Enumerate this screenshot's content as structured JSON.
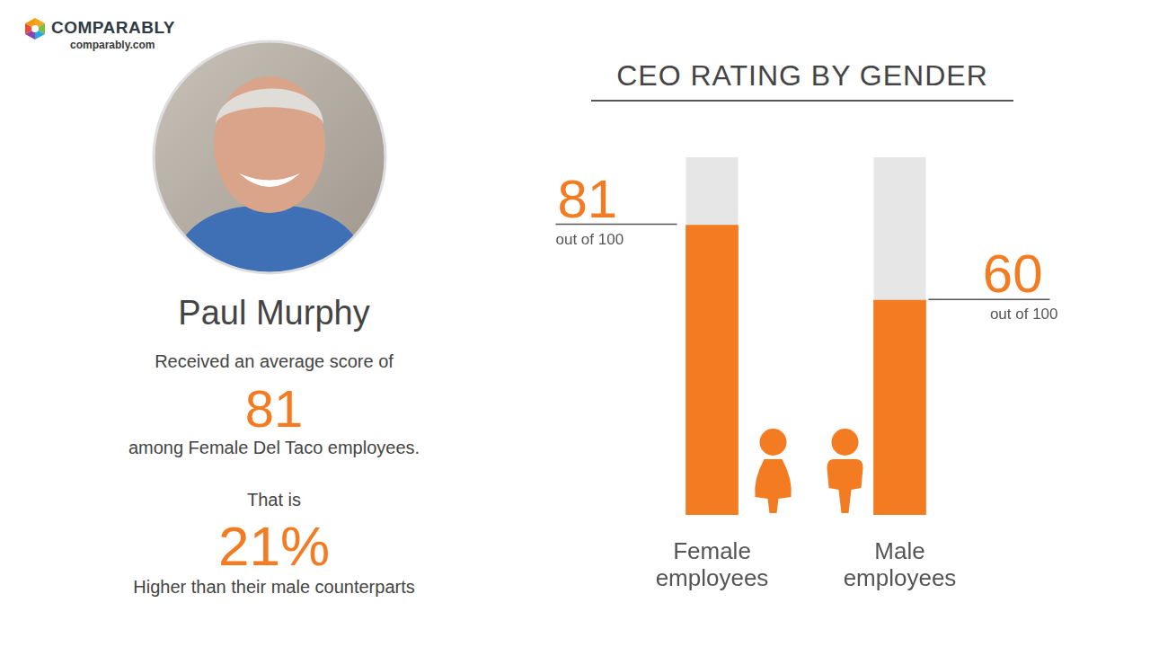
{
  "header": {
    "brand": "COMPARABLY",
    "site": "comparably.com"
  },
  "profile": {
    "name": "Paul Murphy",
    "score_intro": "Received an average score of",
    "score": 81,
    "score_context": "among Female Del Taco employees.",
    "difference_intro": "That is",
    "difference": "21%",
    "difference_context": "Higher than their male counterparts"
  },
  "chart_data": {
    "type": "bar",
    "title": "CEO RATING BY GENDER",
    "categories": [
      "Female employees",
      "Male employees"
    ],
    "values": [
      81,
      60
    ],
    "color": "#f37b22",
    "ylim": [
      0,
      100
    ],
    "annotation": "out of 100",
    "data_labels": true,
    "grid": false,
    "tick_labels": false
  }
}
